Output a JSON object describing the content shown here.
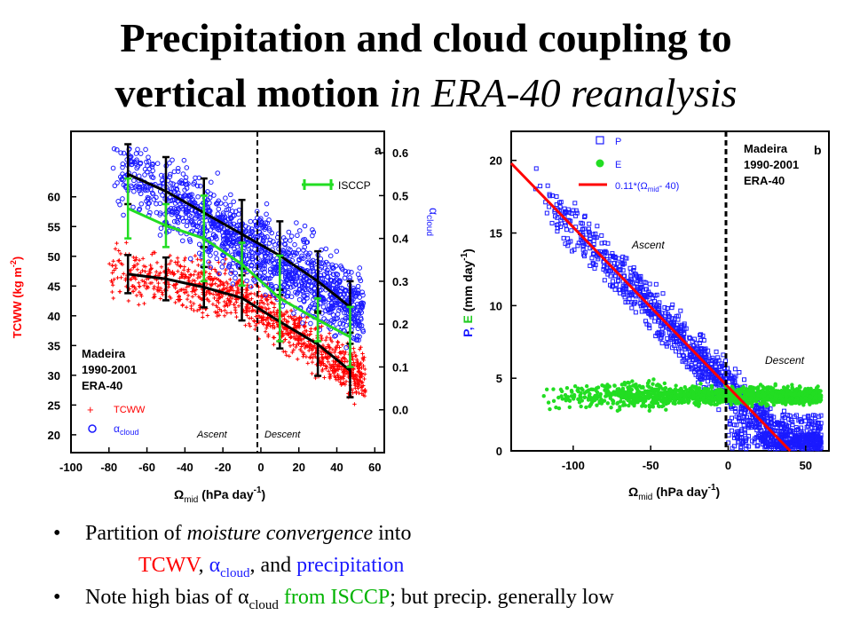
{
  "title": {
    "line1": "Precipitation and cloud coupling to",
    "line2_bold": "vertical motion",
    "line2_italic": "in ERA-40 reanalysis"
  },
  "colors": {
    "red": "#ff0000",
    "blue": "#1a1aff",
    "green": "#22dd22",
    "black": "#000000"
  },
  "chart_data": [
    {
      "type": "scatter",
      "panel_label": "a",
      "x_axis": {
        "ticks": [
          "-100",
          "-80",
          "-60",
          "-40",
          "-20",
          "0",
          "20",
          "40",
          "60"
        ],
        "range": [
          -100,
          65
        ]
      },
      "y_axis_left": {
        "label": "TCWW (kg m",
        "label_sup": "-2",
        "ticks": [
          "20",
          "25",
          "30",
          "35",
          "40",
          "45",
          "50",
          "55",
          "60"
        ],
        "range": [
          17,
          71
        ]
      },
      "y_axis_right": {
        "label": "α",
        "label_sub": "cloud",
        "ticks": [
          "0.0",
          "0.1",
          "0.2",
          "0.3",
          "0.4",
          "0.5",
          "0.6"
        ],
        "range": [
          -0.1,
          0.65
        ]
      },
      "x_label": {
        "omega": "Ω",
        "sub": "mid",
        "units": "(hPa day",
        "sup": "-1",
        "close": ")"
      },
      "info": [
        "Madeira",
        "1990-2001",
        "ERA-40"
      ],
      "legend": [
        {
          "marker": "+",
          "label": "TCWW"
        },
        {
          "marker": "o",
          "label": "α",
          "sub": "cloud"
        }
      ],
      "legend_isccp": "ISCCP",
      "annotations": [
        "Ascent",
        "Descent"
      ],
      "series": [
        {
          "name": "TCWW",
          "x": [
            -70,
            -50,
            -30,
            -10,
            10,
            30,
            47
          ],
          "y": [
            47,
            46.2,
            44.8,
            43,
            39,
            35.2,
            30.8
          ],
          "err": [
            3.2,
            3.6,
            3.4,
            3.8,
            4.5,
            5.3,
            4.5
          ]
        },
        {
          "name": "α cloud (ERA-40)",
          "x": [
            -70,
            -50,
            -30,
            -10,
            10,
            30,
            47
          ],
          "y": [
            0.55,
            0.51,
            0.46,
            0.41,
            0.36,
            0.3,
            0.24
          ],
          "err": [
            0.07,
            0.08,
            0.08,
            0.08,
            0.08,
            0.07,
            0.06
          ]
        },
        {
          "name": "ISCCP",
          "x": [
            -70,
            -50,
            -30,
            -10,
            10,
            30,
            47
          ],
          "y": [
            0.47,
            0.43,
            0.4,
            0.34,
            0.26,
            0.21,
            0.17
          ],
          "err": [
            0.07,
            0.05,
            0.1,
            0.05,
            0.1,
            0.05,
            0.07
          ]
        }
      ]
    },
    {
      "type": "scatter",
      "panel_label": "b",
      "x_axis": {
        "ticks": [
          "-100",
          "-50",
          "0",
          "50"
        ],
        "range": [
          -140,
          65
        ]
      },
      "y_axis": {
        "label_P": "P",
        "label_sep": ", ",
        "label_E": "E",
        "label_units": " (mm day",
        "label_sup": "-1",
        "label_close": ")",
        "ticks": [
          "0",
          "5",
          "10",
          "15",
          "20"
        ],
        "range": [
          0,
          22
        ]
      },
      "x_label": {
        "omega": "Ω",
        "sub": "mid",
        "units": "(hPa day",
        "sup": "-1",
        "close": ")"
      },
      "info": [
        "Madeira",
        "1990-2001",
        "ERA-40"
      ],
      "legend": [
        {
          "marker": "square",
          "label": "P"
        },
        {
          "marker": "dot",
          "label": "E"
        },
        {
          "marker": "line",
          "label_pre": "0.11*(Ω",
          "label_sub": "mid",
          "label_post": "- 40)"
        }
      ],
      "annotations": [
        "Ascent",
        "Descent"
      ],
      "fit_line": {
        "slope": -0.11,
        "offset": 40
      },
      "E_level": 3.8
    }
  ],
  "bullets": [
    {
      "line1_pre": "Partition of ",
      "line1_ital": "moisture convergence",
      "line1_post": " into",
      "line2_a": "TCWV",
      "line2_sep1": ", ",
      "line2_b": "α",
      "line2_b_sub": "cloud",
      "line2_sep2": ", and ",
      "line2_c": "precipitation"
    },
    {
      "pre": "Note high bias of α",
      "sub": "cloud",
      "green": " from ISCCP",
      "post": "; but precip. generally low"
    }
  ]
}
